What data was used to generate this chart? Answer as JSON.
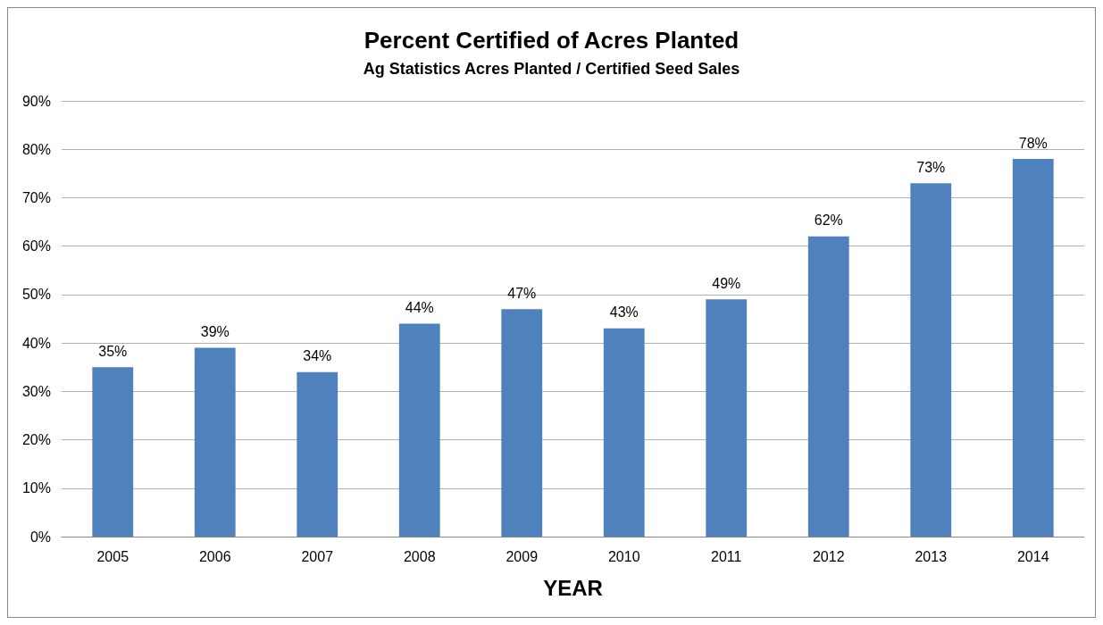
{
  "chart_data": {
    "type": "bar",
    "title": "Percent Certified of Acres Planted",
    "subtitle": "Ag Statistics Acres Planted / Certified Seed Sales",
    "xlabel": "YEAR",
    "categories": [
      "2005",
      "2006",
      "2007",
      "2008",
      "2009",
      "2010",
      "2011",
      "2012",
      "2013",
      "2014"
    ],
    "values": [
      35,
      39,
      34,
      44,
      47,
      43,
      49,
      62,
      73,
      78
    ],
    "value_labels": [
      "35%",
      "39%",
      "34%",
      "44%",
      "47%",
      "43%",
      "49%",
      "62%",
      "73%",
      "78%"
    ],
    "color": "#4f81bd",
    "ylim": [
      0,
      90
    ],
    "yticks": [
      {
        "value": 0,
        "label": "0%"
      },
      {
        "value": 10,
        "label": "10%"
      },
      {
        "value": 20,
        "label": "20%"
      },
      {
        "value": 30,
        "label": "30%"
      },
      {
        "value": 40,
        "label": "40%"
      },
      {
        "value": 50,
        "label": "50%"
      },
      {
        "value": 60,
        "label": "60%"
      },
      {
        "value": 70,
        "label": "70%"
      },
      {
        "value": 80,
        "label": "80%"
      },
      {
        "value": 90,
        "label": "90%"
      }
    ],
    "grid": "y"
  }
}
